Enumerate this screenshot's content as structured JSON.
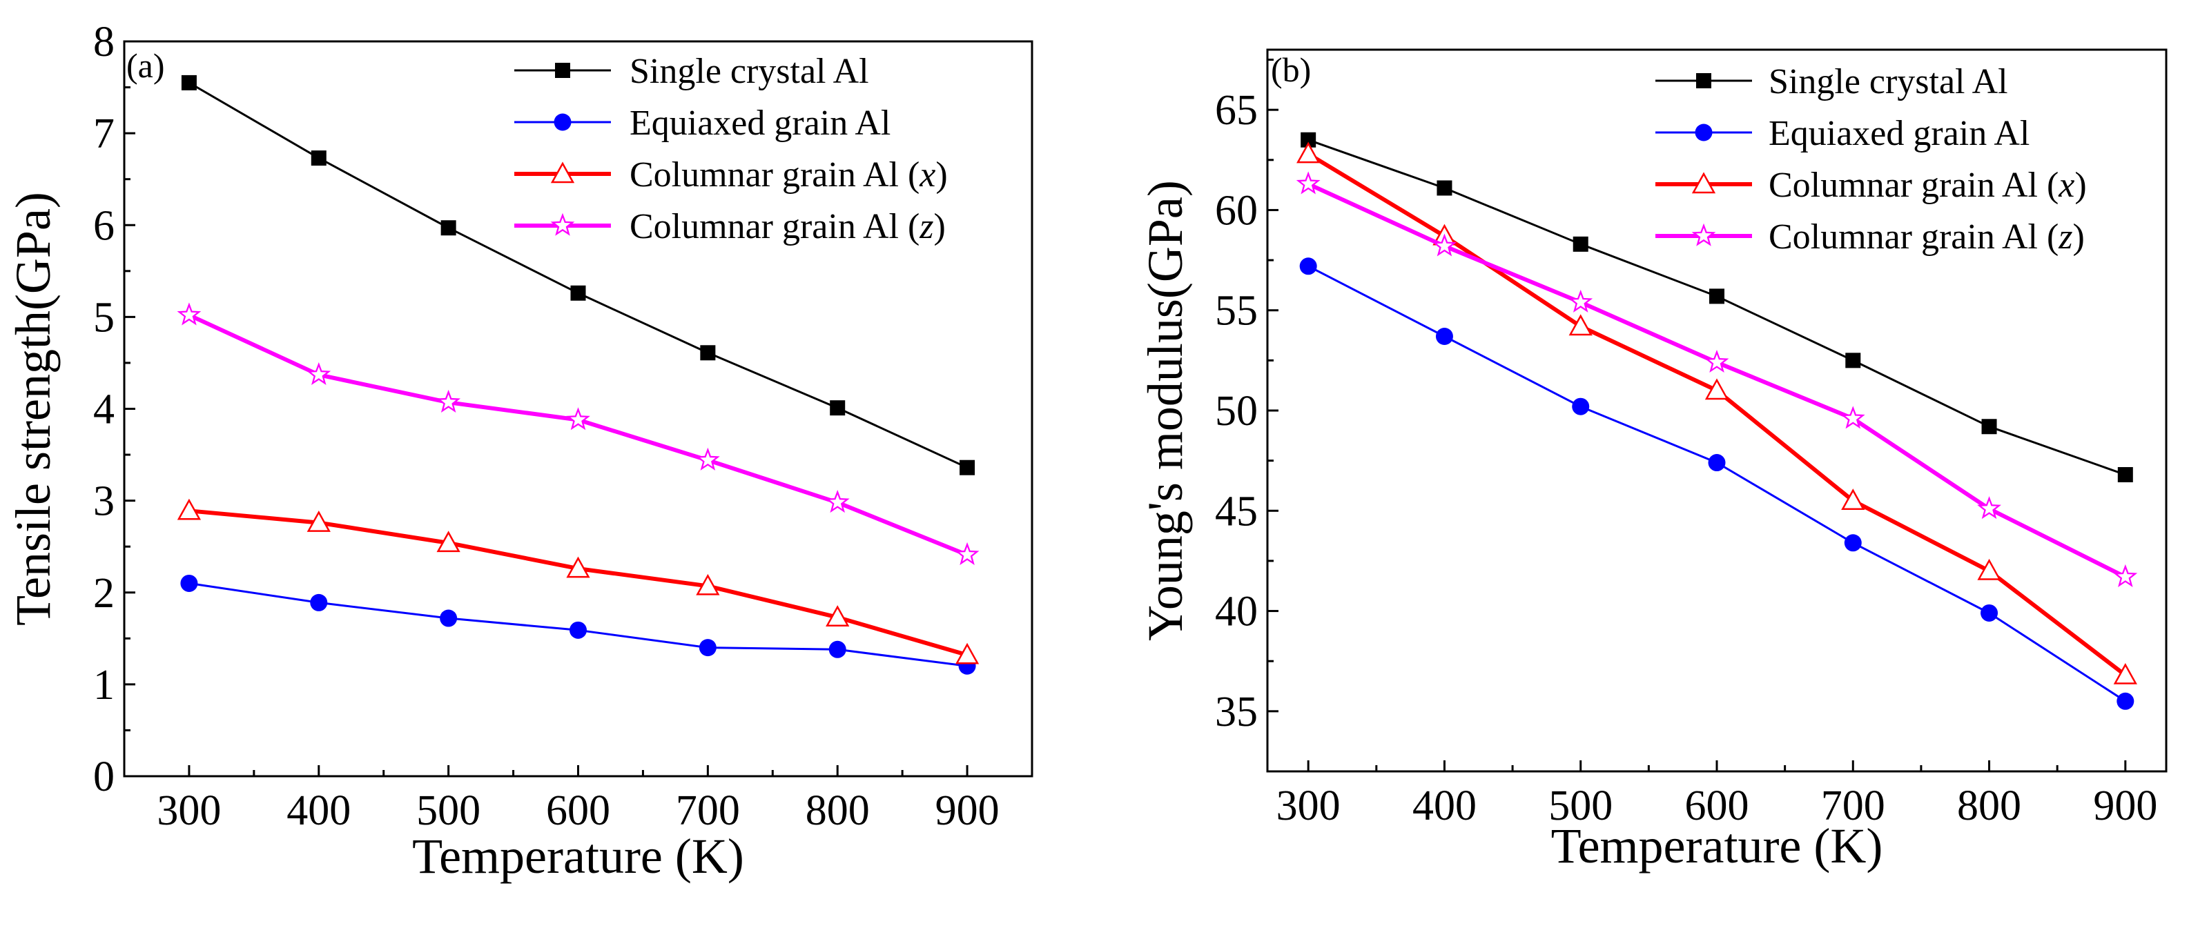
{
  "chart_data": [
    {
      "type": "line",
      "panel_label": "(a)",
      "xlabel": "Temperature (K)",
      "ylabel": "Tensile strength(GPa)",
      "xlim": [
        250,
        950
      ],
      "ylim": [
        0,
        8
      ],
      "x": [
        300,
        400,
        500,
        600,
        700,
        800,
        900
      ],
      "xticks": [
        300,
        400,
        500,
        600,
        700,
        800,
        900
      ],
      "yticks": [
        0,
        1,
        2,
        3,
        4,
        5,
        6,
        7,
        8
      ],
      "legend_position": "top-right",
      "series": [
        {
          "name": "Single crystal Al",
          "name_main": "Single crystal Al",
          "name_var": "",
          "name_close": "",
          "color": "#000000",
          "marker": "square-filled",
          "line_width": 3,
          "values": [
            7.55,
            6.73,
            5.97,
            5.26,
            4.61,
            4.01,
            3.36
          ]
        },
        {
          "name": "Equiaxed grain Al",
          "name_main": "Equiaxed grain Al",
          "name_var": "",
          "name_close": "",
          "color": "#0000ff",
          "marker": "circle-filled",
          "line_width": 3,
          "values": [
            2.1,
            1.89,
            1.72,
            1.59,
            1.4,
            1.38,
            1.2
          ]
        },
        {
          "name": "Columnar grain Al (x)",
          "name_main": "Columnar grain Al (",
          "name_var": "x",
          "name_close": ")",
          "color": "#ff0000",
          "marker": "triangle-open",
          "line_width": 6,
          "values": [
            2.89,
            2.76,
            2.54,
            2.26,
            2.07,
            1.73,
            1.32
          ]
        },
        {
          "name": "Columnar grain Al (z)",
          "name_main": "Columnar grain Al (",
          "name_var": "z",
          "name_close": ")",
          "color": "#ff00ff",
          "marker": "star-open",
          "line_width": 6,
          "values": [
            5.02,
            4.37,
            4.07,
            3.88,
            3.44,
            2.98,
            2.41
          ]
        }
      ]
    },
    {
      "type": "line",
      "panel_label": "(b)",
      "xlabel": "Temperature (K)",
      "ylabel": "Young's modulus(GPa)",
      "xlim": [
        270,
        930
      ],
      "ylim": [
        32,
        68
      ],
      "x": [
        300,
        400,
        500,
        600,
        700,
        800,
        900
      ],
      "xticks": [
        300,
        400,
        500,
        600,
        700,
        800,
        900
      ],
      "yticks": [
        35,
        40,
        45,
        50,
        55,
        60,
        65
      ],
      "legend_position": "top-right",
      "series": [
        {
          "name": "Single crystal Al",
          "name_main": "Single crystal Al",
          "name_var": "",
          "name_close": "",
          "color": "#000000",
          "marker": "square-filled",
          "line_width": 3,
          "values": [
            63.5,
            61.1,
            58.3,
            55.7,
            52.5,
            49.2,
            46.8
          ]
        },
        {
          "name": "Equiaxed grain Al",
          "name_main": "Equiaxed grain Al",
          "name_var": "",
          "name_close": "",
          "color": "#0000ff",
          "marker": "circle-filled",
          "line_width": 3,
          "values": [
            57.2,
            53.7,
            50.2,
            47.4,
            43.4,
            39.9,
            35.5
          ]
        },
        {
          "name": "Columnar grain Al (x)",
          "name_main": "Columnar grain Al (",
          "name_var": "x",
          "name_close": ")",
          "color": "#ff0000",
          "marker": "triangle-open",
          "line_width": 6,
          "values": [
            62.8,
            58.7,
            54.2,
            51.0,
            45.5,
            42.0,
            36.8
          ]
        },
        {
          "name": "Columnar grain Al (z)",
          "name_main": "Columnar grain Al (",
          "name_var": "z",
          "name_close": ")",
          "color": "#ff00ff",
          "marker": "star-open",
          "line_width": 6,
          "values": [
            61.3,
            58.2,
            55.4,
            52.4,
            49.6,
            45.1,
            41.7
          ]
        }
      ]
    }
  ]
}
